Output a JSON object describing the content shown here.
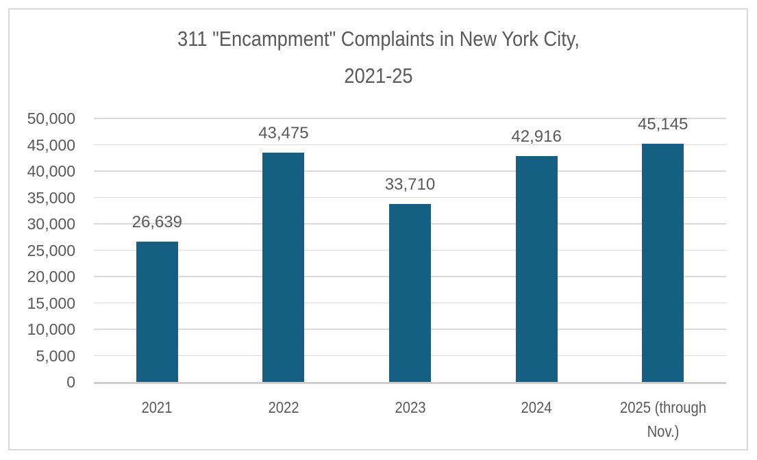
{
  "page": {
    "background_color": "#ffffff",
    "frame_border_color": "#d9d9d9",
    "text_color": "#595959"
  },
  "chart_data": {
    "type": "bar",
    "title": "311 \"Encampment\" Complaints in New York City, 2021-25",
    "title_lines": [
      "311 \"Encampment\" Complaints in New York City,",
      "2021-25"
    ],
    "categories": [
      "2021",
      "2022",
      "2023",
      "2024",
      "2025 (through Nov.)"
    ],
    "category_tick_labels": [
      "2021",
      "2022",
      "2023",
      "2024",
      "2025 (through\nNov.)"
    ],
    "values": [
      26639,
      43475,
      33710,
      42916,
      45145
    ],
    "value_labels": [
      "26,639",
      "43,475",
      "33,710",
      "42,916",
      "45,145"
    ],
    "xlabel": "",
    "ylabel": "",
    "ylim": [
      0,
      50000
    ],
    "y_tick_interval": 5000,
    "y_ticks": [
      0,
      5000,
      10000,
      15000,
      20000,
      25000,
      30000,
      35000,
      40000,
      45000,
      50000
    ],
    "y_tick_labels": [
      "0",
      "5,000",
      "10,000",
      "15,000",
      "20,000",
      "25,000",
      "30,000",
      "35,000",
      "40,000",
      "45,000",
      "50,000"
    ],
    "grid": true,
    "legend": false,
    "bar_color": "#156082",
    "gridline_color": "#d9d9d9",
    "axis_line_color": "#cfcdcd",
    "label_color": "#595959"
  }
}
